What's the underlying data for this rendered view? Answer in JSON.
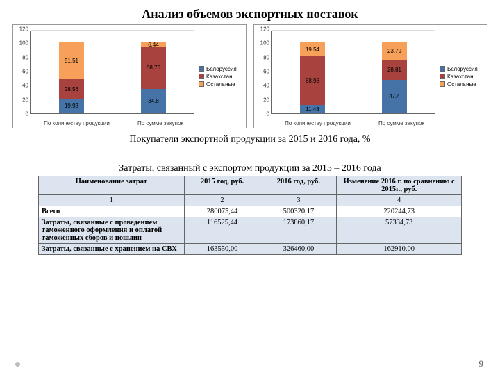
{
  "title": "Анализ объемов экспортных поставок",
  "caption1": "Покупатели экспортной продукции за 2015 и 2016 года, %",
  "caption2": "Затраты, связанный с экспортом продукции за 2015 – 2016 года",
  "page_number": "9",
  "colors": {
    "belarus": "#4573a7",
    "kazakhstan": "#a8423f",
    "others": "#f6a05a",
    "grid": "#dddddd",
    "border": "#999999"
  },
  "legend": [
    {
      "label": "Белоруссия",
      "color": "#4573a7"
    },
    {
      "label": "Казахстан",
      "color": "#a8423f"
    },
    {
      "label": "Остальные",
      "color": "#f6a05a"
    }
  ],
  "chart_left": {
    "ylim": [
      0,
      120
    ],
    "ytick_step": 20,
    "categories": [
      "По количеству продукции",
      "По сумме закупок"
    ],
    "bars": [
      {
        "segments": [
          {
            "label": "19.93",
            "value": 19.93,
            "color": "#4573a7"
          },
          {
            "label": "28.56",
            "value": 28.56,
            "color": "#a8423f"
          },
          {
            "label": "51.51",
            "value": 51.51,
            "color": "#f6a05a"
          }
        ]
      },
      {
        "segments": [
          {
            "label": "34.8",
            "value": 34.8,
            "color": "#4573a7"
          },
          {
            "label": "58.76",
            "value": 58.76,
            "color": "#a8423f"
          },
          {
            "label": "6.44",
            "value": 6.44,
            "color": "#f6a05a"
          }
        ]
      }
    ]
  },
  "chart_right": {
    "ylim": [
      0,
      120
    ],
    "ytick_step": 20,
    "categories": [
      "По количеству продукции",
      "По сумме закупок"
    ],
    "bars": [
      {
        "segments": [
          {
            "label": "11.48",
            "value": 11.48,
            "color": "#4573a7"
          },
          {
            "label": "68.98",
            "value": 68.98,
            "color": "#a8423f"
          },
          {
            "label": "19.54",
            "value": 19.54,
            "color": "#f6a05a"
          }
        ]
      },
      {
        "segments": [
          {
            "label": "47.4",
            "value": 47.4,
            "color": "#4573a7"
          },
          {
            "label": "28.81",
            "value": 28.81,
            "color": "#a8423f"
          },
          {
            "label": "23.79",
            "value": 23.79,
            "color": "#f6a05a"
          }
        ]
      }
    ]
  },
  "table": {
    "headers": [
      "Наименование затрат",
      "2015 год, руб.",
      "2016 год, руб.",
      "Изменение 2016 г. по сравнению с 2015г., руб."
    ],
    "index_row": [
      "1",
      "2",
      "3",
      "4"
    ],
    "rows": [
      {
        "shaded": false,
        "cells": [
          "Всего",
          "280075,44",
          "500320,17",
          "220244,73"
        ]
      },
      {
        "shaded": true,
        "cells": [
          "Затраты, связанные с проведением таможенного оформления и оплатой таможенных сборов и пошлин",
          "116525,44",
          "173860,17",
          "57334,73"
        ]
      },
      {
        "shaded": true,
        "cells": [
          "Затраты, связанные с хранением на СВХ",
          "163550,00",
          "326460,00",
          "162910,00"
        ]
      }
    ],
    "col_widths": [
      "210px",
      "110px",
      "110px",
      "180px"
    ]
  }
}
